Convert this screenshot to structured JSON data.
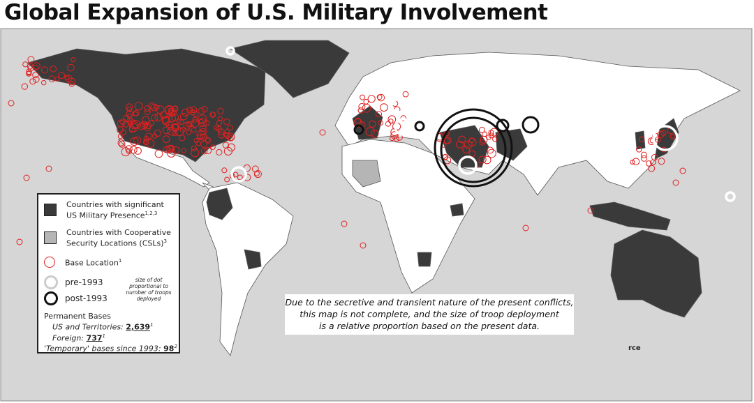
{
  "header": {
    "title": "Global Expansion of U.S. Military Involvement"
  },
  "legend": {
    "items": [
      {
        "label": "Countries with significant US Military Presence",
        "sup": "1,2,3"
      },
      {
        "label": "Countries with Cooperative Security Locations (CSLs)",
        "sup": "3"
      },
      {
        "label": "Base Location",
        "sup": "1"
      },
      {
        "label": "pre-1993"
      },
      {
        "label": "post-1993"
      }
    ],
    "size_note": "size of dot proportional to number of troops deployed",
    "permanent_bases": {
      "heading": "Permanent Bases",
      "rows": [
        {
          "label": "US and Territories:",
          "value": "2,639",
          "sup": "1"
        },
        {
          "label": "Foreign:",
          "value": "737",
          "sup": "1"
        },
        {
          "label": "'Temporary' bases since 1993:",
          "value": "98",
          "sup": "2"
        }
      ]
    }
  },
  "note": {
    "lines": [
      "Due to the secretive and transient nature of the present conflicts,",
      "this map is not complete, and the size of troop deployment",
      "is a relative proportion based on the present data."
    ]
  },
  "footer_fragment": "rce"
}
